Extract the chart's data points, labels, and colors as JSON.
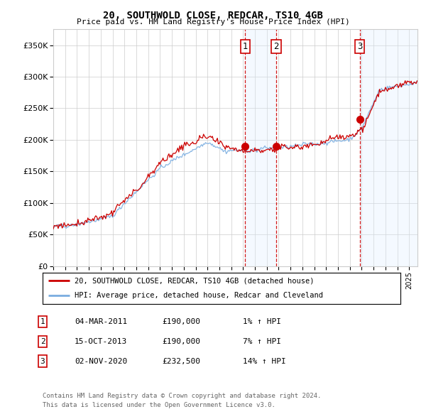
{
  "title": "20, SOUTHWOLD CLOSE, REDCAR, TS10 4GB",
  "subtitle": "Price paid vs. HM Land Registry's House Price Index (HPI)",
  "ylabel_ticks": [
    "£0",
    "£50K",
    "£100K",
    "£150K",
    "£200K",
    "£250K",
    "£300K",
    "£350K"
  ],
  "ytick_vals": [
    0,
    50000,
    100000,
    150000,
    200000,
    250000,
    300000,
    350000
  ],
  "ylim": [
    0,
    375000
  ],
  "xlim_start": 1995.0,
  "xlim_end": 2025.7,
  "sale_dates": [
    2011.17,
    2013.79,
    2020.84
  ],
  "sale_prices": [
    190000,
    190000,
    232500
  ],
  "sale_labels": [
    "1",
    "2",
    "3"
  ],
  "sale_info": [
    {
      "label": "1",
      "date": "04-MAR-2011",
      "price": "£190,000",
      "hpi": "1% ↑ HPI"
    },
    {
      "label": "2",
      "date": "15-OCT-2013",
      "price": "£190,000",
      "hpi": "7% ↑ HPI"
    },
    {
      "label": "3",
      "date": "02-NOV-2020",
      "price": "£232,500",
      "hpi": "14% ↑ HPI"
    }
  ],
  "legend_line1": "20, SOUTHWOLD CLOSE, REDCAR, TS10 4GB (detached house)",
  "legend_line2": "HPI: Average price, detached house, Redcar and Cleveland",
  "footer1": "Contains HM Land Registry data © Crown copyright and database right 2024.",
  "footer2": "This data is licensed under the Open Government Licence v3.0.",
  "hpi_color": "#7aade0",
  "price_color": "#cc0000",
  "sale_marker_color": "#cc0000",
  "sale_label_box_color": "#cc0000",
  "vspan_color": "#ddeeff",
  "vline_color": "#cc0000",
  "background_color": "#ffffff",
  "grid_color": "#cccccc"
}
